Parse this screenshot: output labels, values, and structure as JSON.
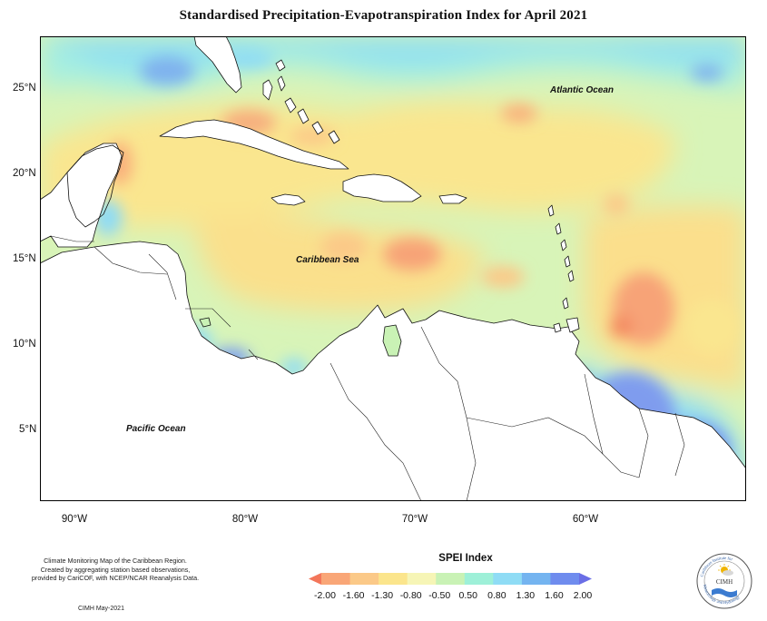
{
  "title": "Standardised Precipitation-Evapotranspiration Index for April 2021",
  "map": {
    "y_ticks": [
      "25°N",
      "20°N",
      "15°N",
      "10°N",
      "5°N"
    ],
    "x_ticks": [
      "90°W",
      "80°W",
      "70°W",
      "60°W"
    ],
    "places": {
      "atlantic": "Atlantic Ocean",
      "caribbean": "Caribbean Sea",
      "pacific": "Pacific Ocean"
    }
  },
  "footer": {
    "line1": "Climate Monitoring Map of the Caribbean Region.",
    "line2": "Created by aggregating station based observations,",
    "line3": "provided by CariCOF, with NCEP/NCAR Reanalysis Data.",
    "credit": "CIMH May-2021"
  },
  "legend": {
    "title": "SPEI Index",
    "labels": [
      "-2.00",
      "-1.60",
      "-1.30",
      "-0.80",
      "-0.50",
      "0.50",
      "0.80",
      "1.30",
      "1.60",
      "2.00"
    ],
    "colors": [
      "#f3765a",
      "#f9a677",
      "#fbc988",
      "#fbe58c",
      "#f6f5b6",
      "#c9f2b5",
      "#9ef0d8",
      "#8fdcf5",
      "#74b4f0",
      "#6f8cee",
      "#6a6ee6"
    ]
  },
  "logo": {
    "text": "CIMH",
    "ring_top": "Caribbean Institute for",
    "ring_bottom": "Meteorology and Hydrology"
  }
}
